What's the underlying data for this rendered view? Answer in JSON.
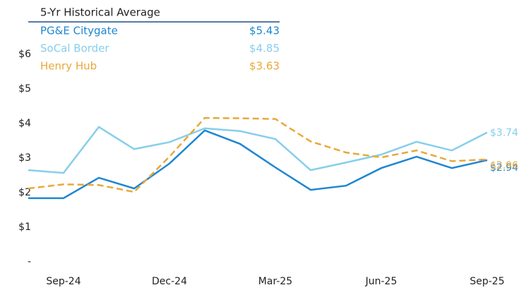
{
  "chart_data": {
    "type": "line",
    "legend_title": "5-Yr Historical Average",
    "categories": [
      null,
      "Sep-24",
      null,
      null,
      "Dec-24",
      null,
      null,
      "Mar-25",
      null,
      null,
      "Jun-25",
      null,
      null,
      "Sep-25"
    ],
    "ylim": [
      0,
      6
    ],
    "yticks": [
      {
        "value": 0,
        "label": "-"
      },
      {
        "value": 1,
        "label": "$1"
      },
      {
        "value": 2,
        "label": "$2"
      },
      {
        "value": 3,
        "label": "$3"
      },
      {
        "value": 4,
        "label": "$4"
      },
      {
        "value": 5,
        "label": "$5"
      },
      {
        "value": 6,
        "label": "$6"
      }
    ],
    "series": [
      {
        "name": "PG&E Citygate",
        "average": "$5.43",
        "color": "#1f86d0",
        "dashed": false,
        "values": [
          1.84,
          1.84,
          2.43,
          2.12,
          2.84,
          3.8,
          3.41,
          2.73,
          2.08,
          2.2,
          2.71,
          3.04,
          2.71,
          2.94
        ],
        "value_labels": [
          null,
          null,
          null,
          null,
          null,
          null,
          null,
          null,
          null,
          null,
          null,
          null,
          null,
          "$2.94"
        ]
      },
      {
        "name": "SoCal Border",
        "average": "$4.85",
        "color": "#87ceeb",
        "dashed": false,
        "values": [
          2.65,
          2.57,
          3.9,
          3.26,
          3.46,
          3.86,
          3.78,
          3.55,
          2.65,
          2.87,
          3.1,
          3.47,
          3.22,
          3.74
        ],
        "value_labels": [
          null,
          null,
          null,
          null,
          null,
          null,
          null,
          null,
          null,
          null,
          null,
          null,
          null,
          "$3.74"
        ]
      },
      {
        "name": "Henry Hub",
        "average": "$3.63",
        "color": "#e8a838",
        "dashed": true,
        "values": [
          2.12,
          2.24,
          2.22,
          2.02,
          3.04,
          4.16,
          4.15,
          4.13,
          3.48,
          3.16,
          3.02,
          3.22,
          2.91,
          2.96
        ],
        "value_labels": [
          null,
          null,
          null,
          null,
          null,
          null,
          null,
          null,
          null,
          null,
          null,
          null,
          null,
          "$2.96"
        ]
      }
    ]
  }
}
